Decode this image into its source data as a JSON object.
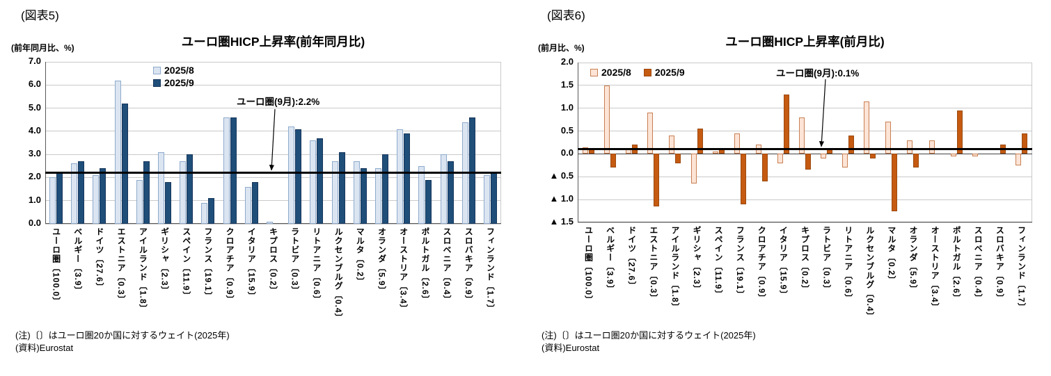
{
  "figures": [
    {
      "label": "(図表5)",
      "note_weight": "(注)〔〕はユーロ圏20か国に対するウェイト(2025年)",
      "note_source": "(資料)Eurostat"
    },
    {
      "label": "(図表6)",
      "note_weight": "(注)〔〕はユーロ圏20か国に対するウェイト(2025年)",
      "note_source": "(資料)Eurostat"
    }
  ],
  "chart_data": [
    {
      "type": "bar",
      "title": "ユーロ圏HICP上昇率(前年同月比)",
      "ylabel": "(前年同月比、%)",
      "ylim": [
        0,
        7.0
      ],
      "grid": true,
      "legend_position": "top-inside-stacked",
      "yticks": [
        {
          "label": "7.0",
          "value": 7.0
        },
        {
          "label": "6.0",
          "value": 6.0
        },
        {
          "label": "5.0",
          "value": 5.0
        },
        {
          "label": "4.0",
          "value": 4.0
        },
        {
          "label": "3.0",
          "value": 3.0
        },
        {
          "label": "2.0",
          "value": 2.0
        },
        {
          "label": "1.0",
          "value": 1.0
        },
        {
          "label": "0.0",
          "value": 0.0
        }
      ],
      "categories": [
        "ユーロ圏〔100.0〕",
        "ベルギー〔3.9〕",
        "ドイツ〔27.6〕",
        "エストニア〔0.3〕",
        "アイルランド〔1.8〕",
        "ギリシャ〔2.3〕",
        "スペイン〔11.9〕",
        "フランス〔19.1〕",
        "クロアチア〔0.9〕",
        "イタリア〔15.9〕",
        "キプロス〔0.2〕",
        "ラトビア〔0.3〕",
        "リトアニア〔0.6〕",
        "ルクセンブルグ〔0.4〕",
        "マルタ〔0.2〕",
        "オランダ〔5.9〕",
        "オーストリア〔3.4〕",
        "ポルトガル〔2.6〕",
        "スロベニア〔0.4〕",
        "スロバキア〔0.9〕",
        "フィンランド〔1.7〕"
      ],
      "series": [
        {
          "name": "2025/8",
          "fill": "#dbe5f1",
          "stroke": "#8eaacc",
          "values": [
            2.0,
            2.6,
            2.1,
            6.2,
            1.9,
            3.1,
            2.7,
            0.9,
            4.6,
            1.6,
            0.1,
            4.2,
            3.6,
            2.7,
            2.7,
            2.4,
            4.1,
            2.5,
            3.0,
            4.4,
            2.1
          ]
        },
        {
          "name": "2025/9",
          "fill": "#1f4e79",
          "stroke": "#16365c",
          "values": [
            2.2,
            2.7,
            2.4,
            5.2,
            2.7,
            1.8,
            3.0,
            1.1,
            4.6,
            1.8,
            0.0,
            4.1,
            3.7,
            3.1,
            2.4,
            3.0,
            3.9,
            1.9,
            2.7,
            4.6,
            2.2
          ]
        }
      ],
      "reference_line": {
        "value": 2.2,
        "label": "ユーロ圏(9月):2.2%",
        "color": "#000000"
      }
    },
    {
      "type": "bar",
      "title": "ユーロ圏HICP上昇率(前月比)",
      "ylabel": "(前月比、%)",
      "ylim": [
        -1.5,
        2.0
      ],
      "grid": true,
      "legend_position": "top-inside-row",
      "yticks": [
        {
          "label": "2.0",
          "value": 2.0
        },
        {
          "label": "1.5",
          "value": 1.5
        },
        {
          "label": "1.0",
          "value": 1.0
        },
        {
          "label": "0.5",
          "value": 0.5
        },
        {
          "label": "0.0",
          "value": 0.0
        },
        {
          "label": "▲ 0.5",
          "value": -0.5
        },
        {
          "label": "▲ 1.0",
          "value": -1.0
        },
        {
          "label": "▲ 1.5",
          "value": -1.5
        }
      ],
      "categories": [
        "ユーロ圏〔100.0〕",
        "ベルギー〔3.9〕",
        "ドイツ〔27.6〕",
        "エストニア〔0.3〕",
        "アイルランド〔1.8〕",
        "ギリシャ〔2.3〕",
        "スペイン〔11.9〕",
        "フランス〔19.1〕",
        "クロアチア〔0.9〕",
        "イタリア〔15.9〕",
        "キプロス〔0.2〕",
        "ラトビア〔0.3〕",
        "リトアニア〔0.6〕",
        "ルクセンブルグ〔0.4〕",
        "マルタ〔0.2〕",
        "オランダ〔5.9〕",
        "オーストリア〔3.4〕",
        "ポルトガル〔2.6〕",
        "スロベニア〔0.4〕",
        "スロバキア〔0.9〕",
        "フィンランド〔1.7〕"
      ],
      "series": [
        {
          "name": "2025/8",
          "fill": "#fce4d6",
          "stroke": "#c87f52",
          "values": [
            0.15,
            1.5,
            0.1,
            0.9,
            0.4,
            -0.65,
            0.05,
            0.45,
            0.2,
            -0.2,
            0.8,
            -0.1,
            -0.3,
            1.15,
            0.7,
            0.3,
            0.3,
            -0.05,
            -0.05,
            0.0,
            -0.25
          ]
        },
        {
          "name": "2025/9",
          "fill": "#c55a11",
          "stroke": "#9c4a10",
          "values": [
            0.1,
            -0.3,
            0.2,
            -1.15,
            -0.2,
            0.55,
            0.1,
            -1.1,
            -0.6,
            1.3,
            -0.35,
            0.1,
            0.4,
            -0.1,
            -1.25,
            -0.3,
            0.0,
            0.95,
            0.0,
            0.2,
            0.45
          ]
        }
      ],
      "reference_line": {
        "value": 0.1,
        "label": "ユーロ圏(9月):0.1%",
        "color": "#000000"
      }
    }
  ]
}
